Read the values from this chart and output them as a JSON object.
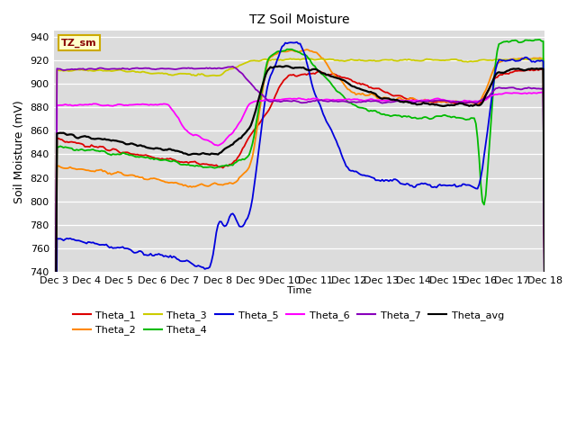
{
  "title": "TZ Soil Moisture",
  "xlabel": "Time",
  "ylabel": "Soil Moisture (mV)",
  "ylim": [
    740,
    945
  ],
  "yticks": [
    740,
    760,
    780,
    800,
    820,
    840,
    860,
    880,
    900,
    920,
    940
  ],
  "x_labels": [
    "Dec 3",
    "Dec 4",
    "Dec 5",
    "Dec 6",
    "Dec 7",
    "Dec 8",
    "Dec 9",
    "Dec 10",
    "Dec 11",
    "Dec 12",
    "Dec 13",
    "Dec 14",
    "Dec 15",
    "Dec 16",
    "Dec 17",
    "Dec 18"
  ],
  "bg_color": "#dcdcdc",
  "legend_box_color": "#ffffcc",
  "legend_box_edge": "#ccaa00",
  "legend_box_text": "TZ_sm",
  "series_colors": {
    "Theta_1": "#dd0000",
    "Theta_2": "#ff8800",
    "Theta_3": "#cccc00",
    "Theta_4": "#00bb00",
    "Theta_5": "#0000dd",
    "Theta_6": "#ff00ff",
    "Theta_7": "#8800bb",
    "Theta_avg": "#000000"
  }
}
